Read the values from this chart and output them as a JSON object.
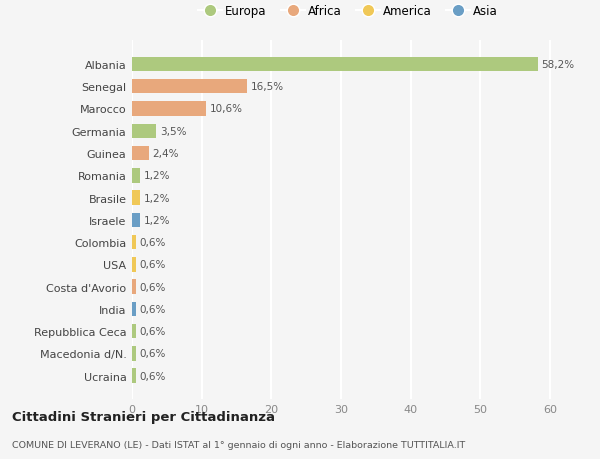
{
  "categories": [
    "Albania",
    "Senegal",
    "Marocco",
    "Germania",
    "Guinea",
    "Romania",
    "Brasile",
    "Israele",
    "Colombia",
    "USA",
    "Costa d'Avorio",
    "India",
    "Repubblica Ceca",
    "Macedonia d/N.",
    "Ucraina"
  ],
  "values": [
    58.2,
    16.5,
    10.6,
    3.5,
    2.4,
    1.2,
    1.2,
    1.2,
    0.6,
    0.6,
    0.6,
    0.6,
    0.6,
    0.6,
    0.6
  ],
  "labels": [
    "58,2%",
    "16,5%",
    "10,6%",
    "3,5%",
    "2,4%",
    "1,2%",
    "1,2%",
    "1,2%",
    "0,6%",
    "0,6%",
    "0,6%",
    "0,6%",
    "0,6%",
    "0,6%",
    "0,6%"
  ],
  "colors": [
    "#adc97e",
    "#e8a87c",
    "#e8a87c",
    "#adc97e",
    "#e8a87c",
    "#adc97e",
    "#f0c857",
    "#6a9ec5",
    "#f0c857",
    "#f0c857",
    "#e8a87c",
    "#6a9ec5",
    "#adc97e",
    "#adc97e",
    "#adc97e"
  ],
  "legend_labels": [
    "Europa",
    "Africa",
    "America",
    "Asia"
  ],
  "legend_colors": [
    "#adc97e",
    "#e8a87c",
    "#f0c857",
    "#6a9ec5"
  ],
  "xlim": [
    0,
    62
  ],
  "xticks": [
    0,
    10,
    20,
    30,
    40,
    50,
    60
  ],
  "title1": "Cittadini Stranieri per Cittadinanza",
  "title2": "COMUNE DI LEVERANO (LE) - Dati ISTAT al 1° gennaio di ogni anno - Elaborazione TUTTITALIA.IT",
  "background_color": "#f5f5f5",
  "grid_color": "#ffffff"
}
